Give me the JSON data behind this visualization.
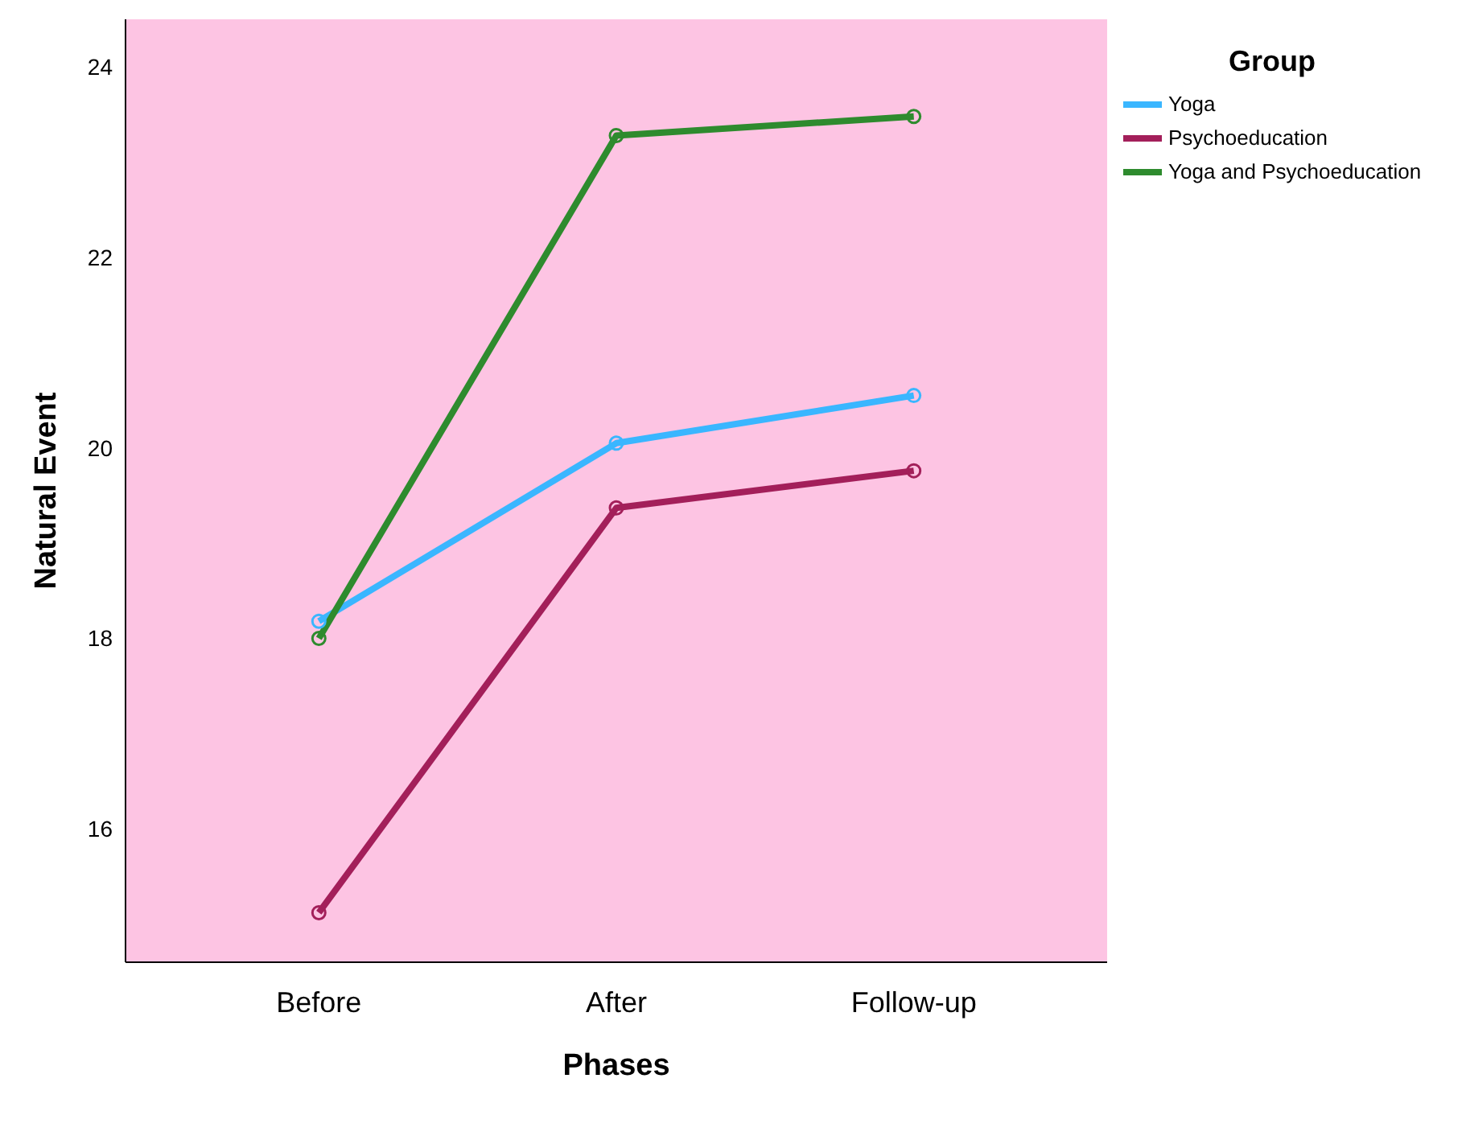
{
  "chart_data": {
    "type": "line",
    "xlabel": "Phases",
    "ylabel": "Natural Event",
    "legend_title": "Group",
    "categories": [
      "Before",
      "After",
      "Follow-up"
    ],
    "series": [
      {
        "name": "Yoga",
        "color": "#3ab6ff",
        "values": [
          18.18,
          20.05,
          20.55
        ]
      },
      {
        "name": "Psychoeducation",
        "color": "#a31f5a",
        "values": [
          15.12,
          19.37,
          19.76
        ]
      },
      {
        "name": "Yoga and Psychoeducation",
        "color": "#2e8b2e",
        "values": [
          18.0,
          23.28,
          23.48
        ]
      }
    ],
    "ylim": [
      14.6,
      24.5
    ],
    "yticks": [
      16,
      18,
      20,
      22,
      24
    ],
    "legend": "top right",
    "marker": "circle",
    "line_style": "solid"
  }
}
